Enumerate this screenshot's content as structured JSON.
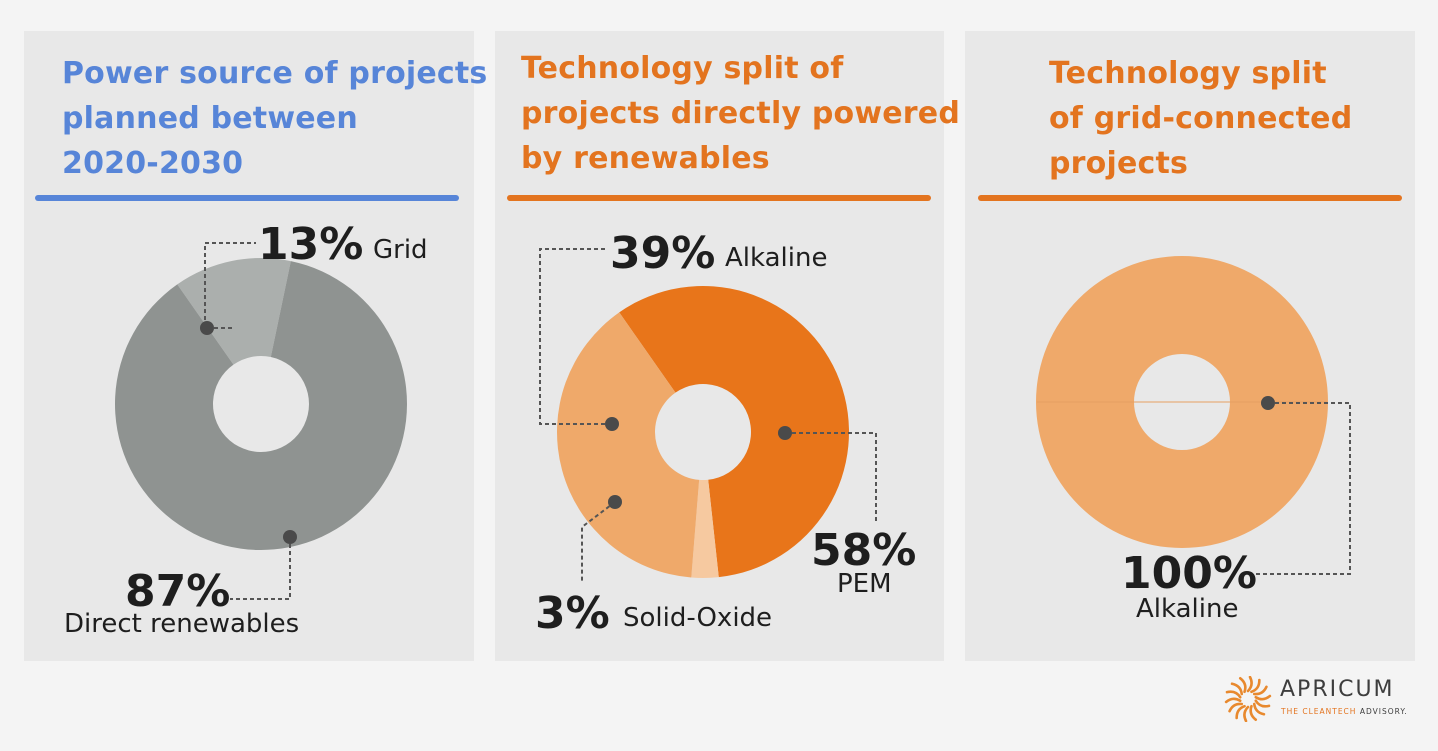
{
  "chart_data": [
    {
      "type": "pie",
      "title": "Power source of projects planned between 2020-2030",
      "title_lines": [
        "Power source of projects",
        "planned between",
        "2020-2030"
      ],
      "categories": [
        "Grid",
        "Direct renewables"
      ],
      "values": [
        13,
        87
      ],
      "value_labels": [
        "13%",
        "87%"
      ],
      "colors": [
        "#abafad",
        "#8f9391"
      ]
    },
    {
      "type": "pie",
      "title": "Technology split of projects directly powered by renewables",
      "title_lines": [
        "Technology split of",
        "projects directly powered",
        "by renewables"
      ],
      "categories": [
        "Alkaline",
        "PEM",
        "Solid-Oxide"
      ],
      "values": [
        39,
        58,
        3
      ],
      "value_labels": [
        "39%",
        "58%",
        "3%"
      ],
      "colors": [
        "#efa96a",
        "#e8751a",
        "#f6c9a0"
      ]
    },
    {
      "type": "pie",
      "title": "Technology split of grid-connected projects",
      "title_lines": [
        "Technology split",
        "of grid-connected",
        "projects"
      ],
      "categories": [
        "Alkaline"
      ],
      "values": [
        100
      ],
      "value_labels": [
        "100%"
      ],
      "colors": [
        "#efa96a"
      ]
    }
  ],
  "brand": {
    "name": "APRICUM",
    "tagline_accent": "THE CLEANTECH",
    "tagline_rest": " ADVISORY.",
    "logo_color": "#e8892e"
  }
}
